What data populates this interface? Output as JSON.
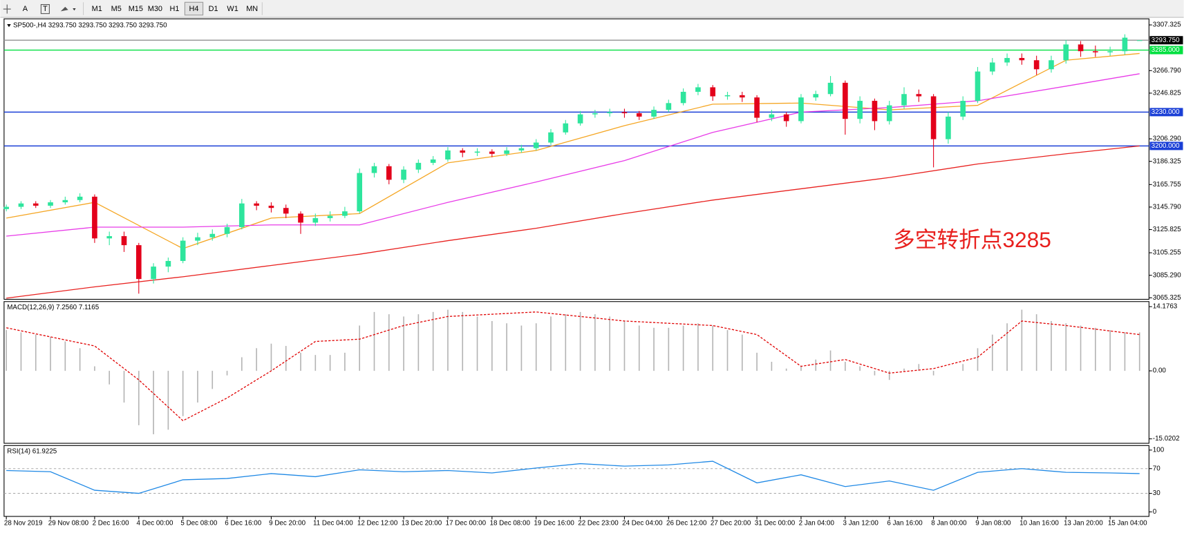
{
  "toolbar": {
    "tools": [
      "A",
      "T"
    ],
    "timeframes": [
      "M1",
      "M5",
      "M15",
      "M30",
      "H1",
      "H4",
      "D1",
      "W1",
      "MN"
    ],
    "active": 5
  },
  "chart_data": [
    {
      "type": "candlestick",
      "title": "SP500-,H4 3293.750 3293.750 3293.750 3293.750",
      "categories": [
        "28 Nov 2019",
        null,
        null,
        "29 Nov 08:00",
        null,
        null,
        "2 Dec 16:00",
        null,
        null,
        "4 Dec 00:00",
        null,
        null,
        "5 Dec 08:00",
        null,
        null,
        "6 Dec 16:00",
        null,
        null,
        "9 Dec 20:00",
        null,
        null,
        "11 Dec 04:00",
        null,
        null,
        "12 Dec 12:00",
        null,
        null,
        "13 Dec 20:00",
        null,
        null,
        "17 Dec 00:00",
        null,
        null,
        "18 Dec 08:00",
        null,
        null,
        "19 Dec 16:00",
        null,
        null,
        "22 Dec 23:00",
        null,
        null,
        "24 Dec 04:00",
        null,
        null,
        "26 Dec 12:00",
        null,
        null,
        "27 Dec 20:00",
        null,
        null,
        "31 Dec 00:00",
        null,
        null,
        "2 Jan 04:00",
        null,
        null,
        "3 Jan 12:00",
        null,
        null,
        "6 Jan 16:00",
        null,
        null,
        "8 Jan 00:00",
        null,
        null,
        "9 Jan 08:00",
        null,
        null,
        "10 Jan 16:00",
        null,
        null,
        "13 Jan 20:00",
        null,
        null,
        "15 Jan 04:00",
        null,
        null
      ],
      "open": [
        3144,
        3146,
        3149,
        3147,
        3150,
        3152,
        3155,
        3118,
        3120,
        3112,
        3082,
        3093,
        3098,
        3116,
        3119,
        3122,
        3128,
        3149,
        3147,
        3145,
        3140,
        3132,
        3136,
        3138,
        3142,
        3176,
        3182,
        3170,
        3179,
        3185,
        3188,
        3196,
        3194,
        3195,
        3193,
        3196,
        3198,
        3203,
        3212,
        3220,
        3228,
        3229,
        3230,
        3229,
        3226,
        3232,
        3238,
        3248,
        3252,
        3244,
        3245,
        3243,
        3225,
        3228,
        3222,
        3243,
        3246,
        3256,
        3224,
        3240,
        3222,
        3236,
        3246,
        3244,
        3206,
        3226,
        3240,
        3266,
        3274,
        3278,
        3276,
        3268,
        3276,
        3290,
        3284,
        3283,
        3284,
        3293.75
      ],
      "high": [
        3148,
        3151,
        3151,
        3152,
        3155,
        3158,
        3157,
        3124,
        3124,
        3114,
        3096,
        3101,
        3119,
        3123,
        3126,
        3131,
        3153,
        3151,
        3150,
        3148,
        3142,
        3140,
        3142,
        3146,
        3180,
        3185,
        3184,
        3182,
        3188,
        3191,
        3199,
        3198,
        3198,
        3197,
        3199,
        3201,
        3206,
        3215,
        3223,
        3231,
        3232,
        3233,
        3233,
        3231,
        3235,
        3241,
        3251,
        3255,
        3254,
        3248,
        3248,
        3245,
        3232,
        3230,
        3246,
        3249,
        3262,
        3258,
        3244,
        3242,
        3240,
        3252,
        3250,
        3246,
        3230,
        3244,
        3270,
        3278,
        3282,
        3282,
        3280,
        3280,
        3294,
        3293,
        3289,
        3288,
        3299,
        3293.75
      ],
      "low": [
        3142,
        3144,
        3145,
        3145,
        3148,
        3150,
        3114,
        3112,
        3106,
        3069,
        3078,
        3088,
        3096,
        3112,
        3116,
        3119,
        3126,
        3143,
        3141,
        3136,
        3122,
        3129,
        3133,
        3136,
        3140,
        3172,
        3166,
        3167,
        3176,
        3183,
        3186,
        3190,
        3191,
        3190,
        3191,
        3194,
        3196,
        3201,
        3210,
        3218,
        3225,
        3226,
        3225,
        3223,
        3224,
        3230,
        3236,
        3245,
        3240,
        3241,
        3239,
        3221,
        3222,
        3217,
        3220,
        3240,
        3244,
        3210,
        3220,
        3214,
        3219,
        3233,
        3239,
        3181,
        3202,
        3223,
        3238,
        3263,
        3271,
        3272,
        3263,
        3265,
        3273,
        3279,
        3279,
        3280,
        3281,
        3293.75
      ],
      "close": [
        3146,
        3149,
        3147,
        3150,
        3152,
        3155,
        3118,
        3120,
        3112,
        3082,
        3093,
        3098,
        3116,
        3119,
        3122,
        3128,
        3149,
        3147,
        3145,
        3140,
        3132,
        3136,
        3138,
        3142,
        3176,
        3182,
        3170,
        3179,
        3185,
        3188,
        3196,
        3194,
        3195,
        3193,
        3196,
        3198,
        3203,
        3212,
        3220,
        3228,
        3229,
        3230,
        3229,
        3226,
        3232,
        3238,
        3248,
        3252,
        3244,
        3245,
        3243,
        3225,
        3228,
        3222,
        3243,
        3246,
        3256,
        3224,
        3240,
        3222,
        3236,
        3246,
        3244,
        3206,
        3226,
        3240,
        3266,
        3274,
        3278,
        3276,
        3268,
        3276,
        3290,
        3284,
        3283,
        3284,
        3296,
        3293.75
      ],
      "up_color": "#2ee59d",
      "down_color": "#e3001b",
      "series": [
        {
          "color": "#f5a623",
          "x": [
            0,
            6,
            12,
            18,
            24,
            30,
            36,
            42,
            48,
            54,
            60,
            66,
            72,
            77
          ],
          "values": [
            3136,
            3150,
            3109,
            3136,
            3140,
            3185,
            3196,
            3218,
            3237,
            3238,
            3232,
            3236,
            3276,
            3282
          ]
        },
        {
          "color": "#e83be8",
          "x": [
            0,
            6,
            12,
            18,
            24,
            30,
            36,
            42,
            48,
            54,
            60,
            66,
            72,
            77
          ],
          "values": [
            3120,
            3128,
            3128,
            3130,
            3130,
            3150,
            3168,
            3187,
            3212,
            3230,
            3234,
            3240,
            3253,
            3264
          ]
        },
        {
          "color": "#e8201e",
          "x": [
            0,
            6,
            12,
            18,
            24,
            30,
            36,
            42,
            48,
            54,
            60,
            66,
            72,
            77
          ],
          "values": [
            3065,
            3075,
            3084,
            3094,
            3104,
            3116,
            3127,
            3140,
            3152,
            3162,
            3172,
            3184,
            3193,
            3200
          ]
        }
      ],
      "levels": [
        {
          "value": 3293.75,
          "label": "3293.750",
          "color": "#9a9a9a",
          "box": "#000000"
        },
        {
          "value": 3285,
          "label": "3285.000",
          "color": "#00e040",
          "box": "#00e040"
        },
        {
          "value": 3230,
          "label": "3230.000",
          "color": "#1a3fd6",
          "box": "#1a3fd6"
        },
        {
          "value": 3200,
          "label": "3200.000",
          "color": "#1a3fd6",
          "box": "#1a3fd6"
        }
      ],
      "annotation": "多空转折点3285",
      "ylim": [
        3064,
        3312.7
      ],
      "yticks": [
        3307.325,
        {
          "value": 3266.79,
          "label": "3266.790"
        },
        3246.825,
        {
          "value": 3206.29,
          "label": "3206.290"
        },
        3186.325,
        3165.755,
        {
          "value": 3145.79,
          "label": "3145.790"
        },
        3125.825,
        3105.255,
        {
          "value": 3085.29,
          "label": "3085.290"
        },
        3065.325
      ]
    },
    {
      "type": "bar",
      "title": "MACD(12,26,9) 7.2560 7.1165",
      "values": [
        9,
        8.5,
        8,
        7.5,
        6.5,
        5,
        1,
        -3,
        -7,
        -12,
        -14,
        -13,
        -10,
        -7,
        -4,
        -1,
        3,
        5,
        6,
        5.5,
        4,
        3.5,
        3.5,
        4,
        10,
        13,
        12.5,
        12,
        12.5,
        13,
        13.5,
        13,
        12,
        11,
        10.5,
        10,
        10.5,
        12,
        12.5,
        13,
        12.5,
        12,
        11,
        10,
        9.5,
        9.5,
        10,
        10.5,
        10,
        9,
        8,
        4,
        2,
        0.5,
        1,
        2.5,
        4.5,
        2,
        1,
        -1,
        -2,
        0.5,
        1.5,
        -1,
        0,
        1.5,
        5,
        8,
        10.5,
        13.5,
        12.5,
        11,
        10.5,
        10,
        9.5,
        9,
        8.5,
        8.5
      ],
      "color": "#b4b4b4",
      "series": [
        {
          "color": "#e00000",
          "dash": true,
          "x": [
            0,
            6,
            9,
            12,
            15,
            18,
            21,
            24,
            27,
            30,
            36,
            42,
            48,
            51,
            54,
            57,
            60,
            63,
            66,
            69,
            72,
            77
          ],
          "values": [
            9.5,
            5.5,
            -2,
            -11,
            -6,
            0,
            6.5,
            7,
            10,
            12,
            13,
            11,
            10,
            8,
            1,
            2.5,
            -0.5,
            0.5,
            3,
            11,
            10,
            8
          ]
        }
      ],
      "ylim": [
        -16,
        15.3
      ],
      "yticks": [
        14.1763,
        {
          "value": 0,
          "label": "0.00"
        },
        -15.0202
      ]
    },
    {
      "type": "line",
      "title": "RSI(14) 61.9225",
      "series": [
        {
          "color": "#1e88e5",
          "x": [
            0,
            3,
            6,
            9,
            12,
            15,
            18,
            21,
            24,
            27,
            30,
            33,
            36,
            39,
            42,
            45,
            48,
            51,
            54,
            57,
            60,
            63,
            66,
            69,
            72,
            75,
            77
          ],
          "values": [
            67,
            65,
            35,
            30,
            52,
            54,
            62,
            57,
            68,
            65,
            67,
            63,
            71,
            78,
            74,
            76,
            82,
            47,
            60,
            41,
            50,
            35,
            64,
            70,
            64,
            63,
            62
          ]
        }
      ],
      "levels": [
        70,
        30
      ],
      "ylim": [
        -7.3,
        107.3
      ],
      "yticks": [
        100,
        70,
        30,
        0
      ]
    }
  ]
}
